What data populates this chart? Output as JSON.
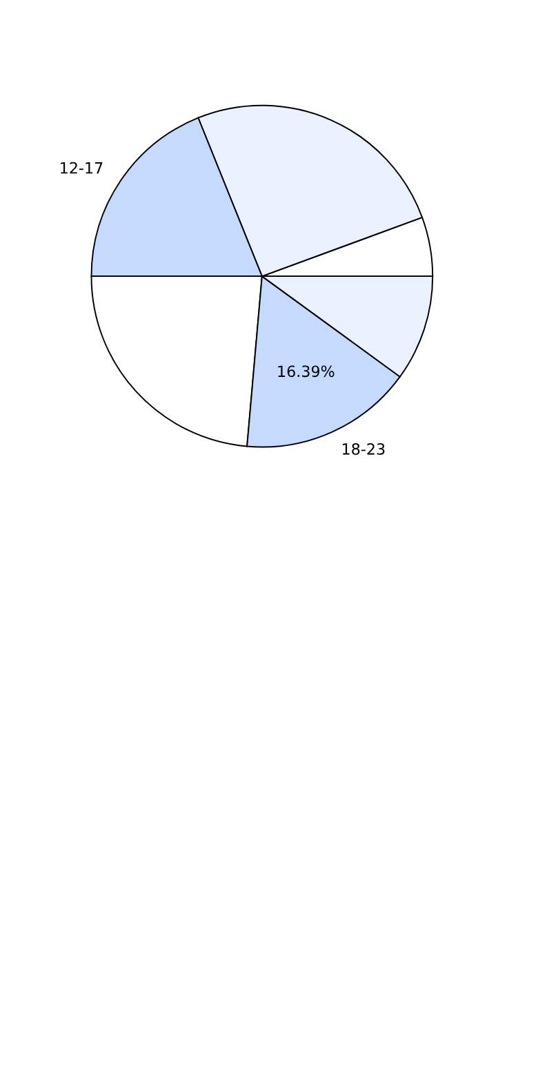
{
  "chart_data": {
    "type": "pie",
    "categories": [
      null,
      null,
      "12-17",
      null,
      "18-23",
      null
    ],
    "values": [
      5.6,
      25.5,
      18.9,
      23.6,
      16.39,
      10.01
    ],
    "colors": [
      "#ffffff",
      "#eaf2ff",
      "#c5daff",
      "#ffffff",
      "#c5daff",
      "#eaf2ff"
    ],
    "value_labels": [
      null,
      null,
      null,
      null,
      "16.39%",
      null
    ]
  }
}
